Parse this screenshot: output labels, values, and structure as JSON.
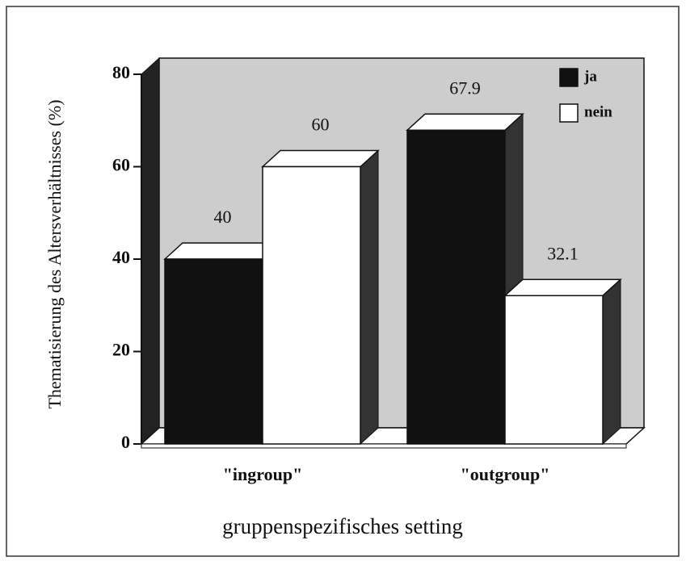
{
  "chart_data": {
    "type": "bar",
    "ylabel": "Thematisierung des Altersverhältnisses (%)",
    "xlabel": "gruppenspezifisches setting",
    "categories": [
      "\"ingroup\"",
      "\"outgroup\""
    ],
    "series": [
      {
        "name": "ja",
        "color": "#111111",
        "values": [
          40,
          67.9
        ]
      },
      {
        "name": "nein",
        "color": "#ffffff",
        "values": [
          60,
          32.1
        ]
      }
    ],
    "ylim": [
      0,
      80
    ],
    "yticks": [
      0,
      20,
      40,
      60,
      80
    ],
    "legend": "upper right"
  }
}
